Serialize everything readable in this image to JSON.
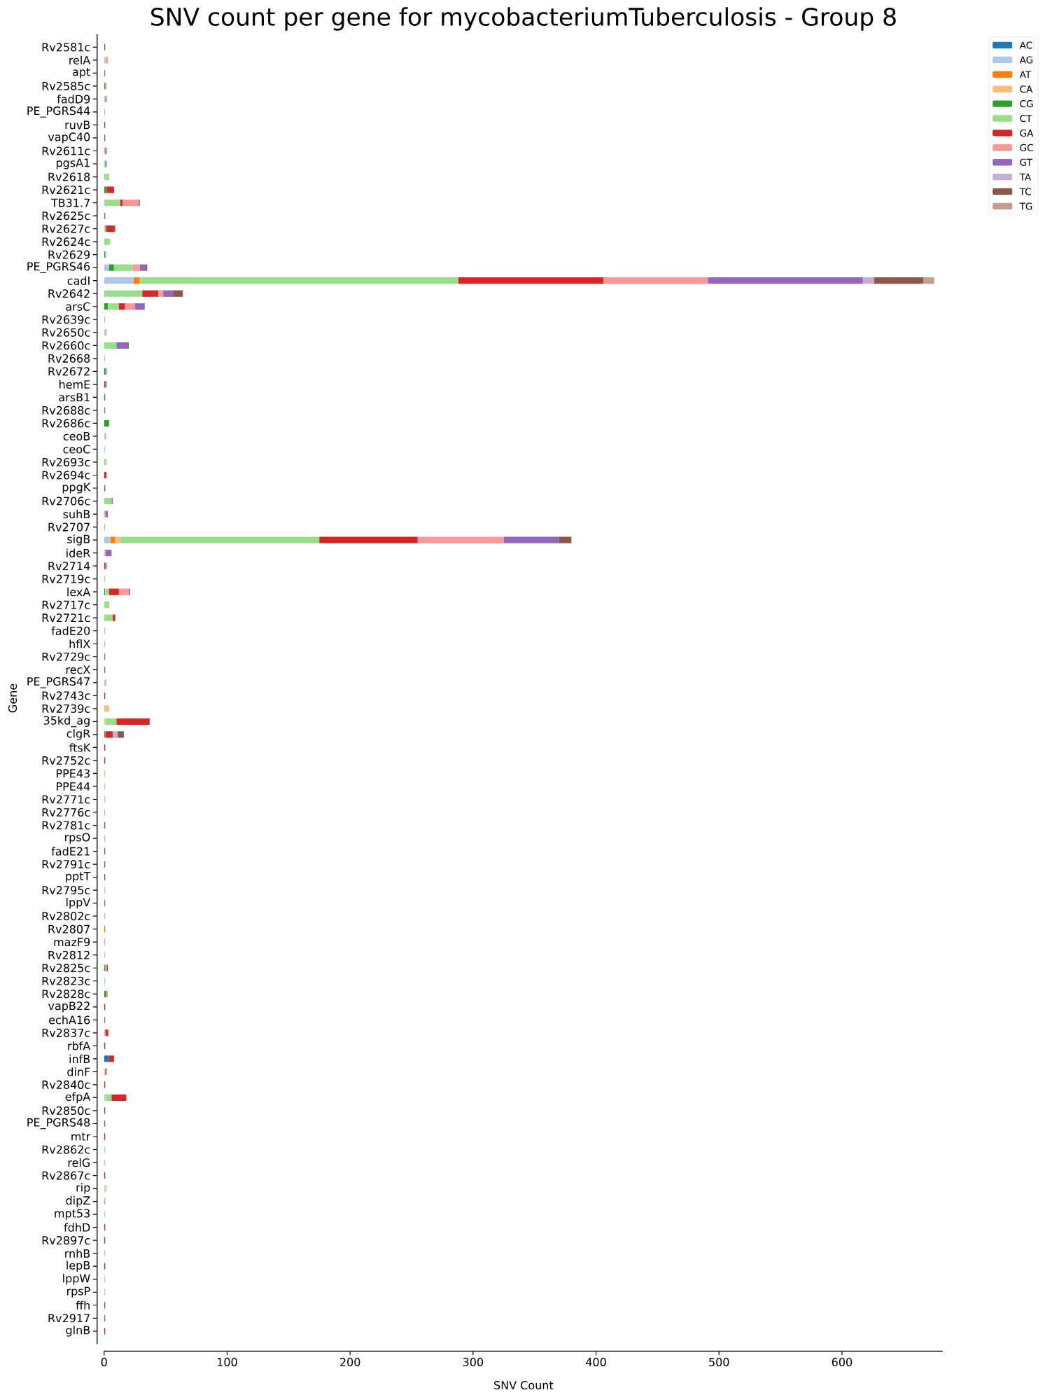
{
  "chart_data": {
    "type": "bar",
    "orientation": "horizontal",
    "stacked": true,
    "title": "SNV count per gene for mycobacteriumTuberculosis - Group 8",
    "xlabel": "SNV Count",
    "ylabel": "Gene",
    "categories": [
      "Rv2581c",
      "relA",
      "apt",
      "Rv2585c",
      "fadD9",
      "PE_PGRS44",
      "ruvB",
      "vapC40",
      "Rv2611c",
      "pgsA1",
      "Rv2618",
      "Rv2621c",
      "TB31.7",
      "Rv2625c",
      "Rv2627c",
      "Rv2624c",
      "Rv2629",
      "PE_PGRS46",
      "cadI",
      "Rv2642",
      "arsC",
      "Rv2639c",
      "Rv2650c",
      "Rv2660c",
      "Rv2668",
      "Rv2672",
      "hemE",
      "arsB1",
      "Rv2688c",
      "Rv2686c",
      "ceoB",
      "ceoC",
      "Rv2693c",
      "Rv2694c",
      "ppgK",
      "Rv2706c",
      "suhB",
      "Rv2707",
      "sigB",
      "ideR",
      "Rv2714",
      "Rv2719c",
      "lexA",
      "Rv2717c",
      "Rv2721c",
      "fadE20",
      "hflX",
      "Rv2729c",
      "recX",
      "PE_PGRS47",
      "Rv2743c",
      "Rv2739c",
      "35kd_ag",
      "clgR",
      "ftsK",
      "Rv2752c",
      "PPE43",
      "PPE44",
      "Rv2771c",
      "Rv2776c",
      "Rv2781c",
      "rpsO",
      "fadE21",
      "Rv2791c",
      "pptT",
      "Rv2795c",
      "lppV",
      "Rv2802c",
      "Rv2807",
      "mazF9",
      "Rv2812",
      "Rv2825c",
      "Rv2823c",
      "Rv2828c",
      "vapB22",
      "echA16",
      "Rv2837c",
      "rbfA",
      "infB",
      "dinF",
      "Rv2840c",
      "efpA",
      "Rv2850c",
      "PE_PGRS48",
      "mtr",
      "Rv2862c",
      "relG",
      "Rv2867c",
      "rip",
      "dipZ",
      "mpt53",
      "fdhD",
      "Rv2897c",
      "rnhB",
      "lepB",
      "lppW",
      "rpsP",
      "ffh",
      "Rv2917",
      "glnB"
    ],
    "series": [
      {
        "name": "AC",
        "color": "#1f77b4",
        "values": [
          0,
          0,
          0,
          0,
          0,
          0,
          0,
          0,
          0,
          0,
          0,
          0,
          0,
          0,
          0,
          0,
          1,
          0,
          0,
          0,
          0,
          0,
          0,
          0,
          0,
          1,
          0,
          0,
          0,
          0,
          0,
          0,
          0,
          0,
          0,
          0,
          0,
          0,
          0,
          0,
          0,
          0,
          0,
          0,
          0,
          0,
          0,
          0,
          0,
          0,
          0,
          0,
          0,
          0,
          0,
          0,
          0,
          0,
          0,
          0,
          0,
          0,
          0,
          0,
          0,
          0,
          0,
          0,
          0,
          0,
          0,
          0,
          0,
          0,
          0,
          0,
          0,
          0,
          4,
          0,
          0,
          0,
          0,
          0,
          0,
          0,
          0,
          0,
          0,
          0,
          0,
          0,
          0,
          0,
          0,
          0,
          0,
          1,
          0,
          0
        ]
      },
      {
        "name": "AG",
        "color": "#aec7e8",
        "values": [
          0,
          0,
          0,
          0,
          1,
          1,
          0,
          0,
          0,
          1,
          0,
          0,
          0,
          0,
          0,
          0,
          0,
          4,
          24,
          0,
          0,
          1,
          1,
          0,
          1,
          0,
          0,
          0,
          0,
          0,
          2,
          1,
          0,
          0,
          0,
          0,
          0,
          0,
          5,
          0,
          0,
          1,
          0,
          0,
          0,
          0,
          1,
          0,
          0,
          2,
          0,
          0,
          0,
          0,
          0,
          0,
          0,
          1,
          1,
          0,
          0,
          0,
          0,
          0,
          0,
          1,
          0,
          0,
          0,
          0,
          1,
          0,
          1,
          0,
          0,
          0,
          0,
          0,
          0,
          0,
          0,
          1,
          0,
          0,
          0,
          1,
          0,
          0,
          1,
          0,
          1,
          0,
          0,
          0,
          0,
          1,
          1,
          0,
          0,
          0
        ]
      },
      {
        "name": "AT",
        "color": "#ff7f0e",
        "values": [
          0,
          0,
          0,
          0,
          0,
          0,
          0,
          0,
          0,
          0,
          0,
          0,
          0,
          0,
          0,
          0,
          0,
          0,
          5,
          0,
          0,
          0,
          0,
          0,
          0,
          0,
          0,
          0,
          0,
          0,
          0,
          0,
          0,
          0,
          0,
          0,
          0,
          0,
          4,
          0,
          0,
          0,
          0,
          0,
          0,
          0,
          0,
          0,
          0,
          0,
          0,
          0,
          0,
          0,
          0,
          0,
          0,
          0,
          0,
          0,
          0,
          0,
          0,
          0,
          0,
          0,
          0,
          0,
          1,
          0,
          0,
          0,
          0,
          0,
          0,
          0,
          0,
          0,
          0,
          0,
          0,
          0,
          0,
          0,
          0,
          0,
          0,
          0,
          0,
          0,
          0,
          0,
          0,
          0,
          0,
          0,
          0,
          0,
          0,
          0
        ]
      },
      {
        "name": "CA",
        "color": "#ffbb78",
        "values": [
          0,
          0,
          0,
          0,
          0,
          0,
          0,
          0,
          0,
          0,
          0,
          0,
          0,
          0,
          1,
          0,
          0,
          0,
          0,
          0,
          0,
          0,
          0,
          0,
          0,
          0,
          0,
          0,
          0,
          0,
          0,
          0,
          0,
          0,
          0,
          0,
          0,
          0,
          4,
          1,
          0,
          0,
          0,
          0,
          0,
          0,
          0,
          0,
          0,
          0,
          0,
          4,
          1,
          0,
          0,
          0,
          1,
          0,
          0,
          0,
          0,
          0,
          0,
          0,
          0,
          0,
          0,
          0,
          0,
          0,
          0,
          0,
          0,
          0,
          0,
          0,
          0,
          0,
          0,
          1,
          0,
          0,
          0,
          0,
          0,
          0,
          1,
          0,
          1,
          0,
          0,
          0,
          0,
          0,
          0,
          0,
          0,
          0,
          0,
          0
        ]
      },
      {
        "name": "CG",
        "color": "#2ca02c",
        "values": [
          0,
          0,
          0,
          1,
          0,
          0,
          0,
          0,
          0,
          1,
          0,
          2,
          0,
          1,
          1,
          0,
          0,
          4,
          0,
          0,
          3,
          0,
          0,
          0,
          0,
          1,
          0,
          1,
          0,
          4,
          0,
          0,
          0,
          0,
          0,
          0,
          0,
          0,
          0,
          0,
          0,
          0,
          1,
          0,
          0,
          0,
          0,
          0,
          1,
          0,
          0,
          0,
          0,
          1,
          0,
          0,
          0,
          0,
          0,
          0,
          0,
          0,
          0,
          1,
          0,
          0,
          0,
          0,
          0,
          0,
          0,
          1,
          0,
          2,
          0,
          0,
          0,
          0,
          0,
          0,
          0,
          0,
          0,
          1,
          0,
          0,
          0,
          0,
          0,
          0,
          0,
          0,
          0,
          0,
          0,
          0,
          0,
          0,
          0,
          0
        ]
      },
      {
        "name": "CT",
        "color": "#98df8a",
        "values": [
          0,
          1,
          0,
          0,
          0,
          0,
          0,
          0,
          0,
          0,
          4,
          0,
          13,
          0,
          0,
          5,
          1,
          15,
          259,
          31,
          9,
          0,
          0,
          10,
          0,
          0,
          0,
          0,
          0,
          0,
          0,
          0,
          2,
          0,
          0,
          6,
          0,
          1,
          162,
          0,
          0,
          0,
          3,
          4,
          7,
          1,
          0,
          0,
          0,
          0,
          0,
          0,
          9,
          0,
          0,
          0,
          0,
          0,
          0,
          1,
          0,
          0,
          0,
          0,
          0,
          0,
          0,
          1,
          0,
          0,
          0,
          0,
          0,
          0,
          0,
          0,
          1,
          0,
          0,
          0,
          0,
          5,
          0,
          0,
          0,
          0,
          0,
          0,
          0,
          0,
          0,
          0,
          0,
          1,
          0,
          0,
          0,
          0,
          0,
          0
        ]
      },
      {
        "name": "GA",
        "color": "#d62728",
        "values": [
          0,
          0,
          0,
          0,
          0,
          0,
          0,
          0,
          0,
          0,
          0,
          6,
          2,
          0,
          6,
          0,
          0,
          0,
          118,
          13,
          5,
          0,
          0,
          0,
          0,
          0,
          1,
          0,
          0,
          0,
          0,
          0,
          0,
          2,
          0,
          0,
          0,
          0,
          80,
          0,
          1,
          0,
          8,
          0,
          2,
          0,
          0,
          0,
          0,
          0,
          1,
          0,
          27,
          6,
          1,
          1,
          0,
          0,
          0,
          0,
          0,
          0,
          0,
          0,
          0,
          0,
          0,
          0,
          0,
          0,
          0,
          0,
          0,
          0,
          1,
          0,
          2,
          1,
          4,
          1,
          1,
          12,
          1,
          0,
          1,
          0,
          0,
          1,
          0,
          0,
          0,
          1,
          1,
          0,
          1,
          0,
          0,
          0,
          0,
          1
        ]
      },
      {
        "name": "GC",
        "color": "#ff9896",
        "values": [
          0,
          2,
          0,
          0,
          0,
          0,
          0,
          0,
          1,
          0,
          0,
          0,
          13,
          0,
          0,
          0,
          0,
          6,
          85,
          4,
          8,
          0,
          0,
          0,
          0,
          0,
          0,
          0,
          0,
          0,
          0,
          0,
          0,
          0,
          0,
          0,
          1,
          0,
          70,
          0,
          0,
          0,
          8,
          0,
          0,
          0,
          0,
          0,
          0,
          0,
          0,
          0,
          0,
          0,
          0,
          0,
          0,
          0,
          0,
          0,
          0,
          0,
          0,
          0,
          0,
          0,
          0,
          0,
          0,
          1,
          0,
          1,
          0,
          1,
          0,
          0,
          1,
          0,
          0,
          0,
          0,
          0,
          0,
          0,
          0,
          0,
          0,
          0,
          0,
          0,
          0,
          0,
          0,
          0,
          0,
          0,
          0,
          0,
          0,
          0
        ]
      },
      {
        "name": "GT",
        "color": "#9467bd",
        "values": [
          0,
          0,
          1,
          0,
          1,
          0,
          0,
          0,
          0,
          0,
          0,
          0,
          1,
          0,
          0,
          0,
          0,
          5,
          126,
          8,
          8,
          0,
          0,
          9,
          0,
          0,
          0,
          0,
          1,
          0,
          0,
          0,
          0,
          0,
          0,
          1,
          2,
          0,
          45,
          5,
          0,
          0,
          1,
          0,
          0,
          0,
          0,
          1,
          0,
          0,
          0,
          0,
          0,
          0,
          0,
          0,
          0,
          0,
          0,
          0,
          0,
          0,
          0,
          0,
          0,
          0,
          1,
          0,
          0,
          0,
          0,
          0,
          0,
          0,
          0,
          1,
          0,
          0,
          0,
          0,
          0,
          0,
          0,
          0,
          0,
          0,
          0,
          0,
          0,
          0,
          0,
          0,
          0,
          0,
          0,
          0,
          0,
          0,
          1,
          0
        ]
      },
      {
        "name": "TA",
        "color": "#c5b0d5",
        "values": [
          0,
          0,
          0,
          0,
          0,
          0,
          0,
          0,
          0,
          0,
          0,
          0,
          0,
          0,
          0,
          0,
          0,
          0,
          9,
          0,
          0,
          0,
          0,
          0,
          0,
          0,
          0,
          0,
          0,
          0,
          0,
          0,
          0,
          0,
          0,
          0,
          0,
          0,
          0,
          0,
          0,
          0,
          0,
          0,
          0,
          0,
          0,
          0,
          0,
          0,
          0,
          0,
          0,
          4,
          0,
          0,
          0,
          0,
          0,
          0,
          0,
          1,
          0,
          0,
          0,
          0,
          0,
          0,
          0,
          0,
          0,
          0,
          0,
          0,
          0,
          0,
          0,
          0,
          0,
          0,
          0,
          0,
          0,
          0,
          0,
          0,
          0,
          0,
          0,
          0,
          0,
          0,
          0,
          0,
          0,
          0,
          0,
          0,
          0,
          0
        ]
      },
      {
        "name": "TC",
        "color": "#8c564b",
        "values": [
          1,
          0,
          0,
          0,
          0,
          0,
          1,
          1,
          1,
          0,
          0,
          0,
          0,
          0,
          1,
          0,
          0,
          1,
          40,
          8,
          0,
          0,
          0,
          1,
          0,
          0,
          1,
          0,
          0,
          0,
          0,
          0,
          0,
          0,
          1,
          0,
          0,
          0,
          10,
          0,
          1,
          0,
          0,
          0,
          0,
          0,
          0,
          0,
          0,
          0,
          0,
          0,
          0,
          5,
          0,
          0,
          0,
          0,
          0,
          0,
          1,
          0,
          1,
          0,
          1,
          0,
          0,
          0,
          0,
          0,
          0,
          1,
          0,
          0,
          0,
          0,
          0,
          0,
          0,
          0,
          0,
          0,
          0,
          0,
          0,
          0,
          0,
          0,
          0,
          0,
          0,
          0,
          0,
          0,
          0,
          0,
          0,
          0,
          0,
          0
        ]
      },
      {
        "name": "TG",
        "color": "#c49c94",
        "values": [
          0,
          0,
          0,
          1,
          0,
          0,
          0,
          0,
          0,
          0,
          0,
          0,
          0,
          0,
          0,
          0,
          0,
          0,
          9,
          0,
          0,
          0,
          1,
          0,
          0,
          0,
          0,
          0,
          0,
          0,
          0,
          0,
          0,
          0,
          0,
          0,
          0,
          0,
          0,
          0,
          0,
          0,
          0,
          0,
          0,
          0,
          0,
          0,
          0,
          0,
          0,
          0,
          0,
          0,
          0,
          0,
          0,
          0,
          0,
          0,
          0,
          0,
          0,
          0,
          0,
          0,
          0,
          0,
          0,
          0,
          0,
          0,
          0,
          0,
          0,
          0,
          0,
          0,
          0,
          0,
          0,
          0,
          0,
          0,
          0,
          0,
          0,
          0,
          0,
          1,
          0,
          0,
          0,
          0,
          0,
          0,
          0,
          0,
          0,
          0
        ]
      }
    ],
    "xlim": [
      0,
      682
    ],
    "xticks": [
      0,
      100,
      200,
      300,
      400,
      500,
      600
    ],
    "legend": "top right"
  }
}
